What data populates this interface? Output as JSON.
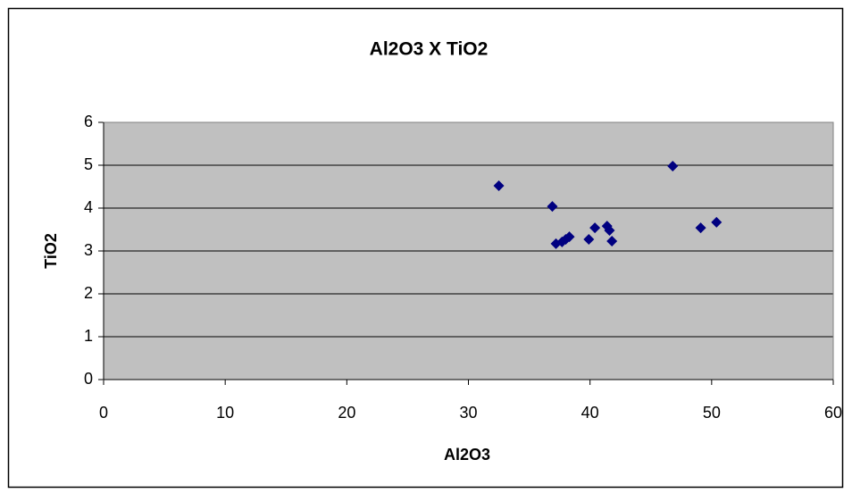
{
  "chart_data": {
    "type": "scatter",
    "title": "Al2O3 X TiO2",
    "x_label": "Al2O3",
    "y_label": "TiO2",
    "series": [
      {
        "color": "#000080",
        "x": [
          32.5,
          36.9,
          37.2,
          37.7,
          38.0,
          38.3,
          39.9,
          40.4,
          41.4,
          41.6,
          41.8,
          46.8,
          49.1,
          50.4
        ],
        "values": [
          4.52,
          4.04,
          3.17,
          3.21,
          3.27,
          3.33,
          3.27,
          3.54,
          3.58,
          3.48,
          3.23,
          4.98,
          3.54,
          3.67
        ]
      }
    ],
    "xlim": [
      0,
      60
    ],
    "xticks": [
      0,
      10,
      20,
      30,
      40,
      50,
      60
    ],
    "ylim": [
      0,
      6
    ],
    "yticks": [
      0,
      1,
      2,
      3,
      4,
      5,
      6
    ],
    "grid": true,
    "plot_background": "#c0c0c0"
  }
}
